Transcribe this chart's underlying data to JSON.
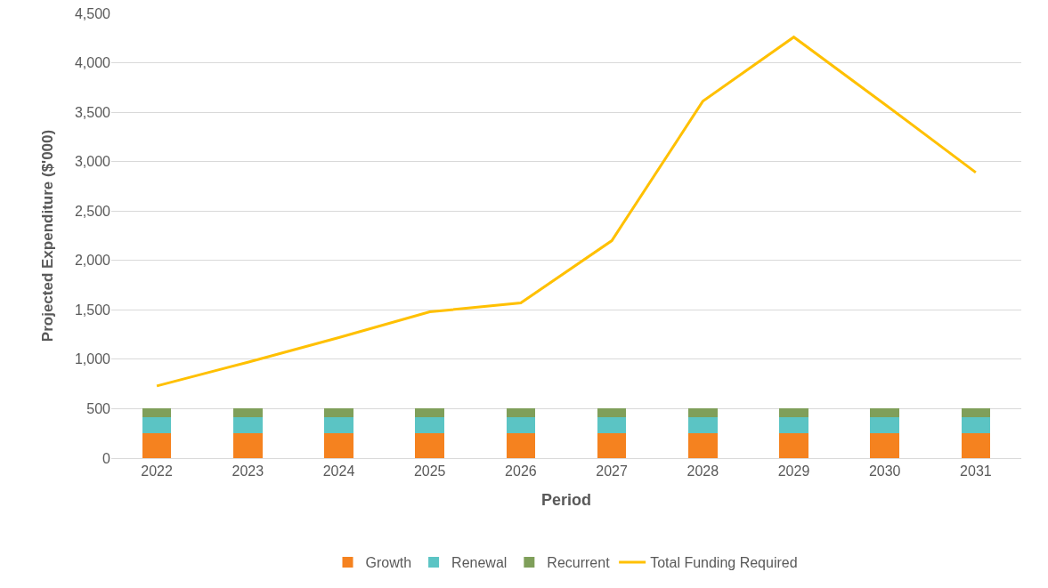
{
  "chart_data": {
    "type": "bar",
    "xlabel": "Period",
    "ylabel": "Projected Expenditure ($'000)",
    "categories": [
      "2022",
      "2023",
      "2024",
      "2025",
      "2026",
      "2027",
      "2028",
      "2029",
      "2030",
      "2031"
    ],
    "stacked": true,
    "series": [
      {
        "name": "Growth",
        "color": "#f5821f",
        "values": [
          250,
          250,
          250,
          250,
          250,
          250,
          250,
          250,
          250,
          250
        ]
      },
      {
        "name": "Renewal",
        "color": "#5bc4c4",
        "values": [
          160,
          160,
          160,
          160,
          160,
          160,
          160,
          160,
          160,
          160
        ]
      },
      {
        "name": "Recurrent",
        "color": "#7f9f5a",
        "values": [
          90,
          90,
          90,
          90,
          90,
          90,
          90,
          90,
          90,
          90
        ]
      },
      {
        "name": "Total Funding Required",
        "type": "line",
        "color": "#ffc000",
        "values": [
          730,
          970,
          1220,
          1480,
          1570,
          2200,
          3610,
          4260,
          3580,
          2890
        ]
      }
    ],
    "ylim": [
      0,
      4500
    ],
    "yticks": [
      {
        "value": 0,
        "label": "0"
      },
      {
        "value": 500,
        "label": "500"
      },
      {
        "value": 1000,
        "label": "1,000"
      },
      {
        "value": 1500,
        "label": "1,500"
      },
      {
        "value": 2000,
        "label": "2,000"
      },
      {
        "value": 2500,
        "label": "2,500"
      },
      {
        "value": 3000,
        "label": "3,000"
      },
      {
        "value": 3500,
        "label": "3,500"
      },
      {
        "value": 4000,
        "label": "4,000"
      },
      {
        "value": 4500,
        "label": "4,500"
      }
    ],
    "grid": "y",
    "legend": "bottom",
    "marker": "none"
  }
}
